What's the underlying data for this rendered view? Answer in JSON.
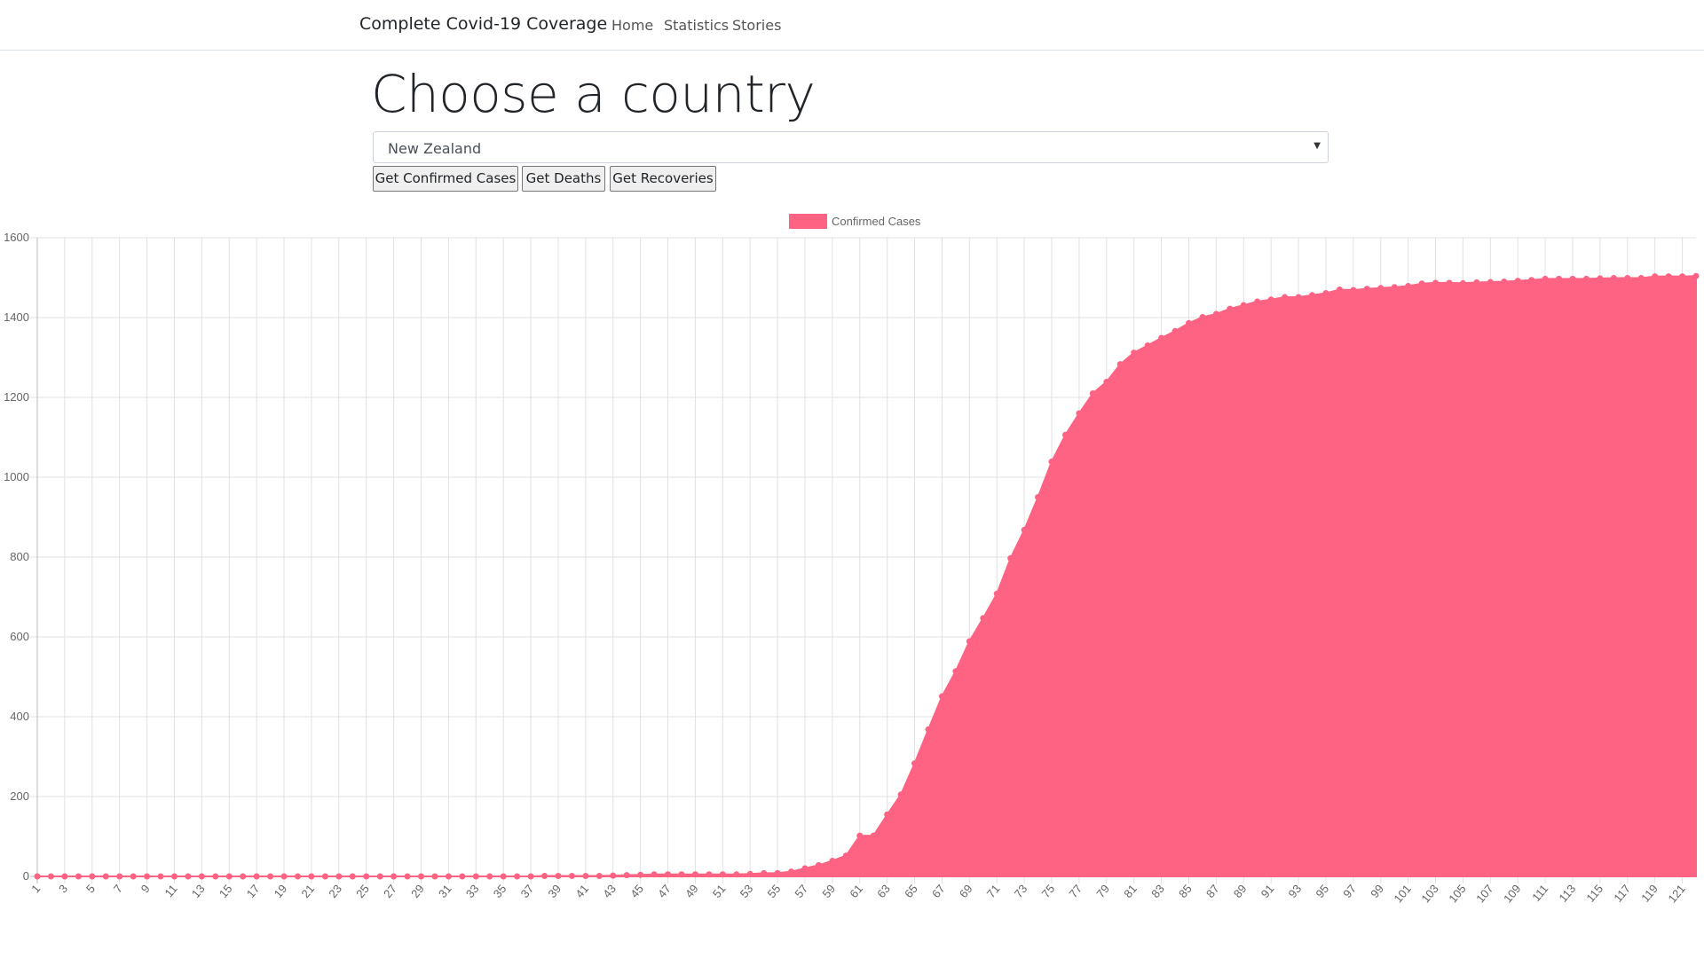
{
  "nav": {
    "brand": "Complete Covid-19 Coverage",
    "links": [
      "Home",
      "Statistics",
      "Stories"
    ]
  },
  "heading": "Choose a country",
  "select": {
    "value": "New Zealand"
  },
  "buttons": [
    "Get Confirmed Cases",
    "Get Deaths",
    "Get Recoveries"
  ],
  "chart_data": {
    "type": "area",
    "categories": [
      "1",
      null,
      "3",
      null,
      "5",
      null,
      "7",
      null,
      "9",
      null,
      "11",
      null,
      "13",
      null,
      "15",
      null,
      "17",
      null,
      "19",
      null,
      "21",
      null,
      "23",
      null,
      "25",
      null,
      "27",
      null,
      "29",
      null,
      "31",
      null,
      "33",
      null,
      "35",
      null,
      "37",
      null,
      "39",
      null,
      "41",
      null,
      "43",
      null,
      "45",
      null,
      "47",
      null,
      "49",
      null,
      "51",
      null,
      "53",
      null,
      "55",
      null,
      "57",
      null,
      "59",
      null,
      "61",
      null,
      "63",
      null,
      "65",
      null,
      "67",
      null,
      "69",
      null,
      "71",
      null,
      "73",
      null,
      "75",
      null,
      "77",
      null,
      "79",
      null,
      "81",
      null,
      "83",
      null,
      "85",
      null,
      "87",
      null,
      "89",
      null,
      "91",
      null,
      "93",
      null,
      "95",
      null,
      "97",
      null,
      "99",
      null,
      "101",
      null,
      "103",
      null,
      "105",
      null,
      "107",
      null,
      "109",
      null,
      "111",
      null,
      "113",
      null,
      "115",
      null,
      "117",
      null,
      "119",
      null,
      "121",
      null
    ],
    "series": [
      {
        "name": "Confirmed Cases",
        "color": "#ff6384",
        "values": [
          0,
          0,
          0,
          0,
          0,
          0,
          0,
          0,
          0,
          0,
          0,
          0,
          0,
          0,
          0,
          0,
          0,
          0,
          0,
          0,
          0,
          0,
          0,
          0,
          0,
          0,
          0,
          0,
          0,
          0,
          0,
          0,
          0,
          0,
          0,
          0,
          0,
          1,
          1,
          1,
          1,
          1,
          2,
          3,
          4,
          5,
          5,
          5,
          5,
          5,
          5,
          5,
          6,
          8,
          8,
          12,
          20,
          28,
          39,
          52,
          102,
          102,
          155,
          205,
          283,
          368,
          451,
          514,
          589,
          647,
          708,
          797,
          868,
          950,
          1039,
          1106,
          1160,
          1210,
          1239,
          1283,
          1312,
          1330,
          1349,
          1366,
          1386,
          1401,
          1409,
          1422,
          1431,
          1440,
          1445,
          1451,
          1451,
          1456,
          1461,
          1470,
          1469,
          1472,
          1474,
          1476,
          1479,
          1485,
          1487,
          1487,
          1486,
          1488,
          1489,
          1490,
          1492,
          1494,
          1497,
          1497,
          1497,
          1497,
          1498,
          1499,
          1499,
          1499,
          1503,
          1503,
          1503,
          1504
        ]
      }
    ],
    "ylim": [
      0,
      1600
    ],
    "yticks": [
      0,
      200,
      400,
      600,
      800,
      1000,
      1200,
      1400,
      1600
    ],
    "grid": true,
    "legend": "top"
  }
}
